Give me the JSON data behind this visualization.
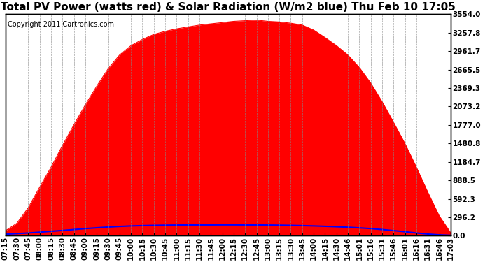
{
  "title": "Total PV Power (watts red) & Solar Radiation (W/m2 blue) Thu Feb 10 17:05",
  "copyright_text": "Copyright 2011 Cartronics.com",
  "background_color": "#ffffff",
  "plot_bg_color": "#ffffff",
  "grid_color": "#888888",
  "pv_color": "#ff0000",
  "solar_color": "#0000ff",
  "ymax": 3554.0,
  "yticks": [
    0.0,
    296.2,
    592.3,
    888.5,
    1184.7,
    1480.8,
    1777.0,
    2073.2,
    2369.3,
    2665.5,
    2961.7,
    3257.8,
    3554.0
  ],
  "ytick_labels": [
    "0.0",
    "296.2",
    "592.3",
    "888.5",
    "1184.7",
    "1480.8",
    "1777.0",
    "2073.2",
    "2369.3",
    "2665.5",
    "2961.7",
    "3257.8",
    "3554.0"
  ],
  "x_labels": [
    "07:15",
    "07:30",
    "07:45",
    "08:00",
    "08:15",
    "08:30",
    "08:45",
    "09:00",
    "09:15",
    "09:30",
    "09:45",
    "10:00",
    "10:15",
    "10:30",
    "10:45",
    "11:00",
    "11:15",
    "11:30",
    "11:45",
    "12:00",
    "12:15",
    "12:30",
    "12:45",
    "13:00",
    "13:15",
    "13:30",
    "13:45",
    "14:00",
    "14:15",
    "14:30",
    "14:46",
    "15:01",
    "15:16",
    "15:31",
    "15:46",
    "16:01",
    "16:16",
    "16:31",
    "16:46",
    "17:03"
  ],
  "title_fontsize": 11,
  "tick_fontsize": 7.5,
  "copyright_fontsize": 7,
  "pv_values": [
    80,
    200,
    450,
    780,
    1100,
    1450,
    1780,
    2100,
    2400,
    2680,
    2900,
    3050,
    3150,
    3230,
    3280,
    3320,
    3350,
    3380,
    3400,
    3420,
    3440,
    3450,
    3460,
    3440,
    3430,
    3410,
    3380,
    3300,
    3180,
    3050,
    2900,
    2700,
    2450,
    2150,
    1820,
    1480,
    1100,
    700,
    320,
    50
  ],
  "solar_values": [
    25,
    35,
    45,
    58,
    72,
    85,
    100,
    115,
    128,
    140,
    150,
    158,
    163,
    167,
    170,
    172,
    173,
    174,
    174,
    175,
    175,
    174,
    173,
    172,
    170,
    167,
    163,
    158,
    152,
    145,
    137,
    127,
    115,
    100,
    83,
    65,
    45,
    28,
    15,
    8
  ]
}
